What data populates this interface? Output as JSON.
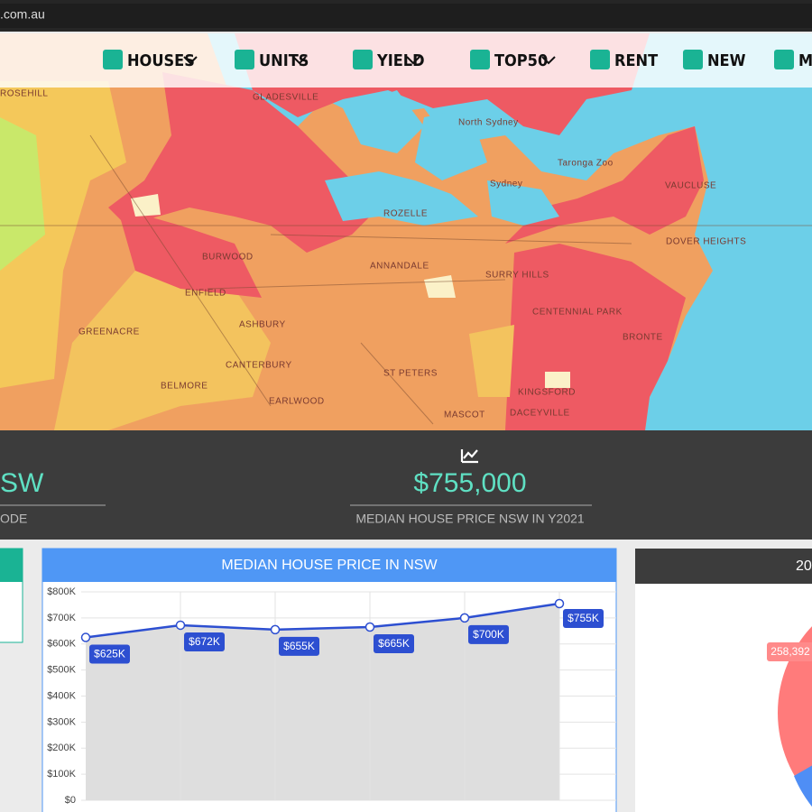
{
  "url": ".com.au",
  "nav": [
    "HOUSES",
    "UNITS",
    "YIELD",
    "TOP50",
    "RENT",
    "NEW",
    "MO"
  ],
  "map": {
    "labels": [
      "ROSEHILL",
      "GLADESVILLE",
      "North Sydney",
      "Sydney",
      "Taronga Zoo",
      "VAUCLUSE",
      "DOVER HEIGHTS",
      "BURWOOD",
      "ROZELLE",
      "ANNANDALE",
      "SURRY HILLS",
      "ENFIELD",
      "CENTENNIAL PARK",
      "BRONTE",
      "GREENACRE",
      "ASHBURY",
      "CANTERBURY",
      "BELMORE",
      "EARLWOOD",
      "ST PETERS",
      "MASCOT",
      "KINGSFORD",
      "DACEYVILLE"
    ]
  },
  "stats": [
    {
      "value": "SW",
      "caption": "ODE"
    },
    {
      "value": "$755,000",
      "caption": "MEDIAN HOUSE PRICE NSW IN Y2021"
    }
  ],
  "chart_data": {
    "type": "line",
    "title": "MEDIAN HOUSE PRICE IN NSW",
    "categories": [
      null,
      null,
      null,
      null,
      null,
      null
    ],
    "series": [
      {
        "name": null,
        "color": "#2d4fd1",
        "values": [
          625000,
          672000,
          655000,
          665000,
          700000,
          755000
        ],
        "value_labels": [
          "$625K",
          "$672K",
          "$655K",
          "$665K",
          "$700K",
          "$755K"
        ]
      }
    ],
    "ylim": [
      0,
      800000
    ],
    "yticks": [
      {
        "value": 0,
        "label": "$0"
      },
      {
        "value": 100000,
        "label": "$100K"
      },
      {
        "value": 200000,
        "label": "$200K"
      },
      {
        "value": 300000,
        "label": "$300K"
      },
      {
        "value": 400000,
        "label": "$400K"
      },
      {
        "value": 500000,
        "label": "$500K"
      },
      {
        "value": 600000,
        "label": "$600K"
      },
      {
        "value": 700000,
        "label": "$700K"
      },
      {
        "value": 800000,
        "label": "$800K"
      }
    ],
    "grid": true,
    "fill": "#dedede"
  },
  "side_panel": {
    "title": "20",
    "label": "258,392"
  }
}
